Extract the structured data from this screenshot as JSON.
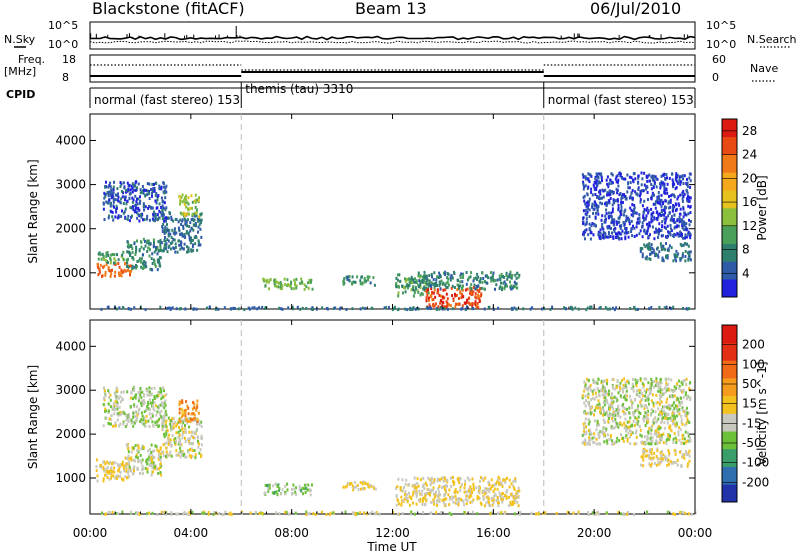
{
  "header": {
    "site": "Blackstone (fitACF)",
    "beam": "Beam 13",
    "date": "06/Jul/2010"
  },
  "top_panels": {
    "nsky_label": "N.Sky",
    "nsky_ticks": [
      "10^5",
      "10^0"
    ],
    "nsearch_label": "N.Search",
    "nsearch_ticks": [
      "10^5",
      "10^0"
    ],
    "freq_label": "Freq.",
    "freq_unit": "[MHz]",
    "freq_ticks": [
      "18",
      "8"
    ],
    "nave_label": "Nave",
    "nave_ticks": [
      "60",
      "0"
    ],
    "cpid_label": "CPID",
    "cpid_segments": [
      {
        "label": "normal (fast stereo) 153",
        "start_hour": 0,
        "end_hour": 6
      },
      {
        "label": "themis (tau) 3310",
        "start_hour": 6,
        "end_hour": 18
      },
      {
        "label": "normal (fast stereo) 153",
        "start_hour": 18,
        "end_hour": 24
      }
    ]
  },
  "x_axis": {
    "label": "Time UT",
    "ticks": [
      "00:00",
      "04:00",
      "08:00",
      "12:00",
      "16:00",
      "20:00",
      "00:00"
    ]
  },
  "chart_data": [
    {
      "type": "heatmap",
      "ylabel": "Slant Range [km]",
      "yticks": [
        "1000",
        "2000",
        "3000",
        "4000"
      ],
      "ylim": [
        180,
        4600
      ],
      "xlim_hours": [
        0,
        24
      ],
      "colorbar": {
        "label": "Power [dB]",
        "ticks": [
          "4",
          "8",
          "12",
          "16",
          "20",
          "24",
          "28"
        ],
        "range": [
          0,
          30
        ],
        "colors": [
          "#2222dd",
          "#2e5aa8",
          "#2f7f6e",
          "#4aa05a",
          "#8bbf3c",
          "#e6c21e",
          "#f5a81c",
          "#f07a17",
          "#e84a14",
          "#dd1a12"
        ]
      },
      "scatter_regions": [
        {
          "hours": [
            0.2,
            1.6
          ],
          "range_km": [
            950,
            1250
          ],
          "value": 24
        },
        {
          "hours": [
            0.3,
            1.4
          ],
          "range_km": [
            1250,
            1500
          ],
          "value": 10
        },
        {
          "hours": [
            1.4,
            2.8
          ],
          "range_km": [
            1100,
            1800
          ],
          "value": 8
        },
        {
          "hours": [
            2.8,
            4.4
          ],
          "range_km": [
            1500,
            2400
          ],
          "value": 6
        },
        {
          "hours": [
            3.5,
            4.3
          ],
          "range_km": [
            2300,
            2800
          ],
          "value": 14
        },
        {
          "hours": [
            0.5,
            3.0
          ],
          "range_km": [
            2200,
            3100
          ],
          "value": 4
        },
        {
          "hours": [
            6.8,
            8.8
          ],
          "range_km": [
            650,
            900
          ],
          "value": 12
        },
        {
          "hours": [
            10.0,
            11.3
          ],
          "range_km": [
            750,
            950
          ],
          "value": 8
        },
        {
          "hours": [
            12.1,
            13.4
          ],
          "range_km": [
            500,
            1000
          ],
          "value": 10
        },
        {
          "hours": [
            13.2,
            15.5
          ],
          "range_km": [
            250,
            700
          ],
          "value": 26
        },
        {
          "hours": [
            13.0,
            17.0
          ],
          "range_km": [
            650,
            1050
          ],
          "value": 8
        },
        {
          "hours": [
            21.8,
            23.8
          ],
          "range_km": [
            1300,
            1700
          ],
          "value": 6
        },
        {
          "hours": [
            19.5,
            23.8
          ],
          "range_km": [
            1800,
            3300
          ],
          "value": 3
        },
        {
          "hours": [
            0,
            24
          ],
          "range_km": [
            200,
            260
          ],
          "value": 6
        }
      ]
    },
    {
      "type": "heatmap",
      "ylabel": "Slant Range [km]",
      "yticks": [
        "1000",
        "2000",
        "3000",
        "4000"
      ],
      "ylim": [
        180,
        4600
      ],
      "xlim_hours": [
        0,
        24
      ],
      "colorbar": {
        "label": "Velocity [m s^-1]",
        "ticks": [
          "200",
          "100",
          "50",
          "15",
          "-15",
          "-50",
          "-100",
          "-200"
        ],
        "range": [
          -250,
          250
        ],
        "colors": [
          "#2233aa",
          "#2f6fb0",
          "#3a9e6a",
          "#6cc03a",
          "#c8c8be",
          "#f4c21e",
          "#f59c1c",
          "#f06a17",
          "#e33014",
          "#dd1a12"
        ]
      },
      "scatter_regions": [
        {
          "hours": [
            0.2,
            1.6
          ],
          "range_km": [
            950,
            1500
          ],
          "value": 0
        },
        {
          "hours": [
            1.4,
            2.8
          ],
          "range_km": [
            1100,
            1800
          ],
          "value": -30
        },
        {
          "hours": [
            2.8,
            4.4
          ],
          "range_km": [
            1500,
            2400
          ],
          "value": -20
        },
        {
          "hours": [
            3.5,
            4.3
          ],
          "range_km": [
            2300,
            2800
          ],
          "value": 80
        },
        {
          "hours": [
            0.5,
            3.0
          ],
          "range_km": [
            2200,
            3100
          ],
          "value": -40
        },
        {
          "hours": [
            6.8,
            8.8
          ],
          "range_km": [
            650,
            900
          ],
          "value": -60
        },
        {
          "hours": [
            10.0,
            11.3
          ],
          "range_km": [
            750,
            950
          ],
          "value": 5
        },
        {
          "hours": [
            12.1,
            17.0
          ],
          "range_km": [
            400,
            1050
          ],
          "value": 0
        },
        {
          "hours": [
            21.8,
            23.8
          ],
          "range_km": [
            1300,
            1700
          ],
          "value": 0
        },
        {
          "hours": [
            19.5,
            23.8
          ],
          "range_km": [
            1800,
            3300
          ],
          "value": -30
        },
        {
          "hours": [
            0,
            24
          ],
          "range_km": [
            200,
            260
          ],
          "value": -20
        }
      ]
    }
  ]
}
